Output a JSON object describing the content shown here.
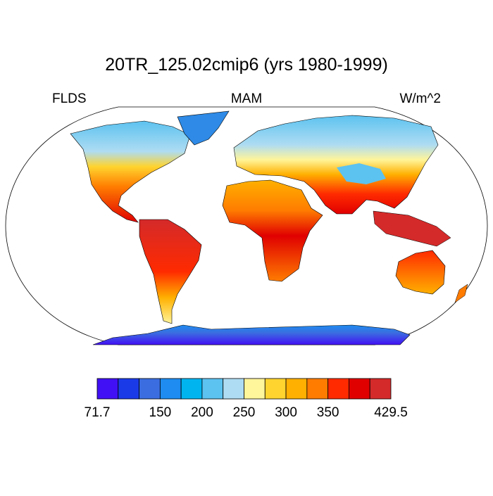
{
  "title": "20TR_125.02cmip6 (yrs 1980-1999)",
  "left_label": "FLDS",
  "center_label": "MAM",
  "right_label": "W/m^2",
  "colorbar": {
    "colors": [
      "#4110f4",
      "#1a3ae8",
      "#3b6de0",
      "#1e8cf0",
      "#00b4f0",
      "#5cc2f0",
      "#aedcf2",
      "#fff59a",
      "#ffd42e",
      "#ffb000",
      "#ff7c00",
      "#ff2a00",
      "#e00000",
      "#d42a2a"
    ],
    "boundaries": [
      71.7,
      null,
      null,
      150,
      null,
      200,
      null,
      250,
      null,
      300,
      null,
      350,
      null,
      null,
      429.5
    ]
  }
}
